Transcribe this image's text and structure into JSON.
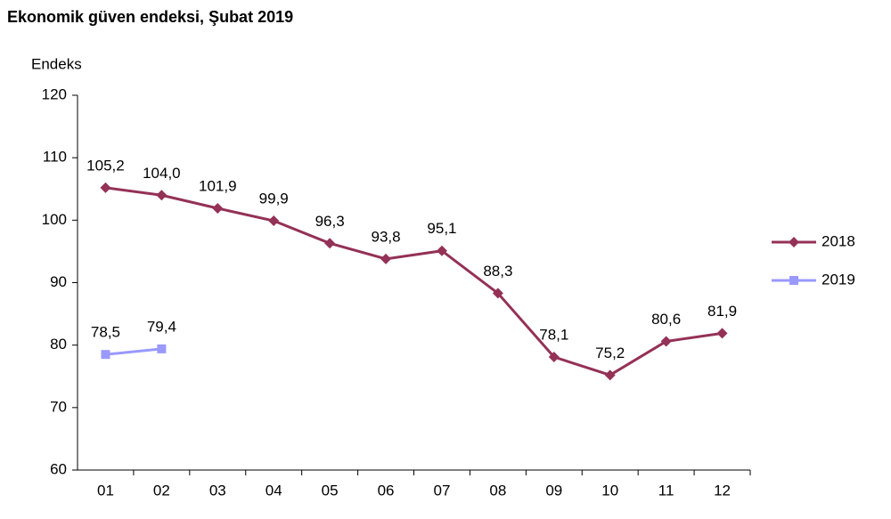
{
  "chart_data": {
    "type": "line",
    "title": "Ekonomik güven endeksi, Şubat 2019",
    "y_label": "Endeks",
    "categories": [
      "01",
      "02",
      "03",
      "04",
      "05",
      "06",
      "07",
      "08",
      "09",
      "10",
      "11",
      "12"
    ],
    "series": [
      {
        "name": "2018",
        "color": "#943157",
        "marker": "diamond",
        "values": [
          105.2,
          104.0,
          101.9,
          99.9,
          96.3,
          93.8,
          95.1,
          88.3,
          78.1,
          75.2,
          80.6,
          81.9
        ],
        "value_labels": [
          "105,2",
          "104,0",
          "101,9",
          "99,9",
          "96,3",
          "93,8",
          "95,1",
          "88,3",
          "78,1",
          "75,2",
          "80,6",
          "81,9"
        ]
      },
      {
        "name": "2019",
        "color": "#9999ff",
        "marker": "square",
        "values": [
          78.5,
          79.4,
          null,
          null,
          null,
          null,
          null,
          null,
          null,
          null,
          null,
          null
        ],
        "value_labels": [
          "78,5",
          "79,4",
          null,
          null,
          null,
          null,
          null,
          null,
          null,
          null,
          null,
          null
        ]
      }
    ],
    "ylim": [
      60,
      120
    ],
    "yticks": [
      60,
      70,
      80,
      90,
      100,
      110,
      120
    ],
    "grid": false,
    "legend": "right"
  }
}
